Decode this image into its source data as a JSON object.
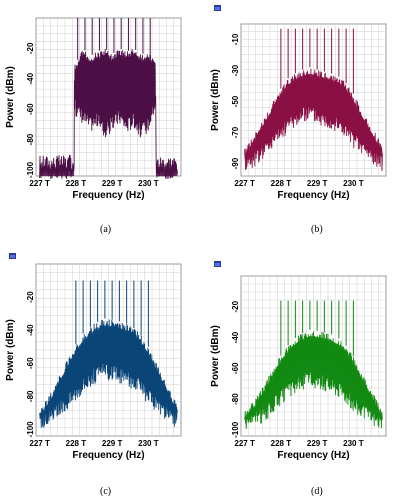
{
  "colors": {
    "a": "#4b0f45",
    "b": "#8a0f44",
    "c": "#0b4578",
    "d": "#138a13",
    "grid": "#cfcfcf",
    "frame": "#9c9c9c"
  },
  "captions": [
    "(a)",
    "(b)",
    "(c)",
    "(d)"
  ],
  "chart_data": [
    {
      "id": "a",
      "type": "line",
      "xlabel": "Frequency (Hz)",
      "ylabel": "Power (dBm)",
      "xticks": [
        "227 T",
        "228 T",
        "229 T",
        "230 T"
      ],
      "yticks": [
        "-20",
        "-40",
        "-60",
        "-80",
        "-100"
      ],
      "xlim": [
        226.9,
        230.9
      ],
      "ylim": [
        -104,
        0
      ],
      "series": [
        {
          "x": [
            227.0,
            227.95,
            227.96,
            228.0,
            228.2,
            228.4,
            228.6,
            228.8,
            229.0,
            229.2,
            229.4,
            229.6,
            229.8,
            230.0,
            230.2,
            230.21,
            230.8
          ],
          "upper": [
            -100,
            -100,
            -30,
            -30,
            -20,
            -25,
            -22,
            -20,
            -24,
            -20,
            -22,
            -20,
            -24,
            -22,
            -30,
            -100,
            -100
          ],
          "lower": [
            -100,
            -100,
            -60,
            -65,
            -70,
            -75,
            -72,
            -80,
            -75,
            -70,
            -76,
            -72,
            -80,
            -75,
            -60,
            -100,
            -100
          ],
          "spikes_x": [
            228.05,
            228.25,
            228.45,
            228.65,
            228.85,
            229.05,
            229.25,
            229.45,
            229.65,
            229.85,
            230.05
          ],
          "spikes_top": 0
        }
      ]
    },
    {
      "id": "b",
      "type": "line",
      "xlabel": "Frequency (Hz)",
      "ylabel": "Power (dBm)",
      "xticks": [
        "227 T",
        "228 T",
        "229 T",
        "230 T"
      ],
      "yticks": [
        "-10",
        "-30",
        "-50",
        "-70",
        "-90"
      ],
      "xlim": [
        226.9,
        230.9
      ],
      "ylim": [
        -98,
        0
      ],
      "series": [
        {
          "x": [
            227.0,
            227.3,
            227.6,
            227.9,
            228.2,
            228.5,
            228.8,
            229.1,
            229.4,
            229.7,
            230.0,
            230.3,
            230.6,
            230.8
          ],
          "upper": [
            -80,
            -70,
            -58,
            -45,
            -35,
            -30,
            -28,
            -30,
            -32,
            -35,
            -45,
            -58,
            -70,
            -78
          ],
          "lower": [
            -95,
            -92,
            -85,
            -78,
            -70,
            -65,
            -62,
            -66,
            -68,
            -72,
            -80,
            -86,
            -92,
            -95
          ],
          "spikes_x": [
            228.0,
            228.2,
            228.4,
            228.6,
            228.8,
            229.0,
            229.2,
            229.4,
            229.6,
            229.8,
            230.0
          ],
          "spikes_top": -3
        }
      ]
    },
    {
      "id": "c",
      "type": "line",
      "xlabel": "Frequency (Hz)",
      "ylabel": "Power (dBm)",
      "xticks": [
        "227 T",
        "228 T",
        "229 T",
        "230 T"
      ],
      "yticks": [
        "-20",
        "-40",
        "-60",
        "-80",
        "-100"
      ],
      "xlim": [
        226.9,
        230.9
      ],
      "ylim": [
        -104,
        0
      ],
      "series": [
        {
          "x": [
            227.0,
            227.3,
            227.6,
            227.9,
            228.2,
            228.5,
            228.8,
            229.1,
            229.4,
            229.7,
            230.0,
            230.3,
            230.6,
            230.8
          ],
          "upper": [
            -88,
            -78,
            -65,
            -52,
            -42,
            -36,
            -33,
            -34,
            -36,
            -40,
            -50,
            -63,
            -76,
            -86
          ],
          "lower": [
            -100,
            -98,
            -92,
            -85,
            -78,
            -73,
            -70,
            -72,
            -74,
            -78,
            -86,
            -92,
            -98,
            -100
          ],
          "spikes_x": [
            228.0,
            228.2,
            228.4,
            228.6,
            228.8,
            229.0,
            229.2,
            229.4,
            229.6,
            229.8,
            230.0
          ],
          "spikes_top": -10
        }
      ]
    },
    {
      "id": "d",
      "type": "line",
      "xlabel": "Frequency (Hz)",
      "ylabel": "Power (dBm)",
      "xticks": [
        "227 T",
        "228 T",
        "229 T",
        "230 T"
      ],
      "yticks": [
        "-20",
        "-40",
        "-60",
        "-80",
        "-100"
      ],
      "xlim": [
        226.9,
        230.9
      ],
      "ylim": [
        -104,
        0
      ],
      "series": [
        {
          "x": [
            227.0,
            227.3,
            227.6,
            227.9,
            228.2,
            228.5,
            228.8,
            229.1,
            229.4,
            229.7,
            230.0,
            230.3,
            230.6,
            230.8
          ],
          "upper": [
            -88,
            -80,
            -68,
            -55,
            -45,
            -38,
            -35,
            -36,
            -38,
            -42,
            -52,
            -65,
            -78,
            -88
          ],
          "lower": [
            -100,
            -98,
            -94,
            -86,
            -80,
            -75,
            -72,
            -74,
            -76,
            -80,
            -88,
            -94,
            -98,
            -100
          ],
          "spikes_x": [
            228.0,
            228.2,
            228.4,
            228.6,
            228.8,
            229.0,
            229.2,
            229.4,
            229.6,
            229.8,
            230.0
          ],
          "spikes_top": -16
        }
      ]
    }
  ]
}
